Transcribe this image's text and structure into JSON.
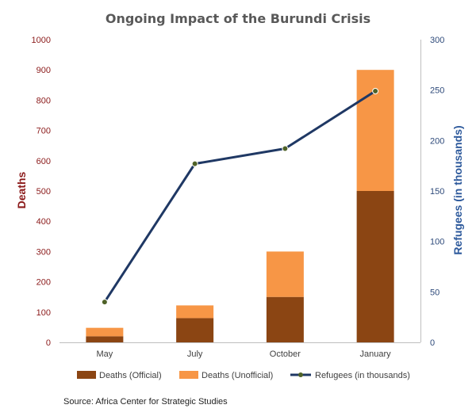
{
  "chart_data": {
    "type": "bar",
    "title": "Ongoing Impact of the Burundi Crisis",
    "categories": [
      "May",
      "July",
      "October",
      "January"
    ],
    "series": [
      {
        "name": "Deaths (Official)",
        "type": "bar",
        "stack": "deaths",
        "axis": "left",
        "color": "#8b4513",
        "values": [
          20,
          80,
          150,
          500
        ]
      },
      {
        "name": "Deaths (Unofficial)",
        "type": "bar",
        "stack": "deaths",
        "axis": "left",
        "color": "#f79646",
        "values": [
          28,
          42,
          150,
          400
        ]
      },
      {
        "name": "Refugees (in thousands)",
        "type": "line",
        "axis": "right",
        "color": "#1f3864",
        "marker_color": "#4f6228",
        "values": [
          40,
          177,
          192,
          249
        ]
      }
    ],
    "ylabel": "Deaths",
    "y2label": "Refugees (in thousands)",
    "ylim": [
      0,
      1000
    ],
    "y2lim": [
      0,
      300
    ],
    "yticks": [
      "0",
      "100",
      "200",
      "300",
      "400",
      "500",
      "600",
      "700",
      "800",
      "900",
      "1000"
    ],
    "y2ticks": [
      "0",
      "50",
      "100",
      "150",
      "200",
      "250",
      "300"
    ],
    "grid": false,
    "legend_position": "bottom",
    "source": "Source: Africa Center for Strategic Studies"
  }
}
